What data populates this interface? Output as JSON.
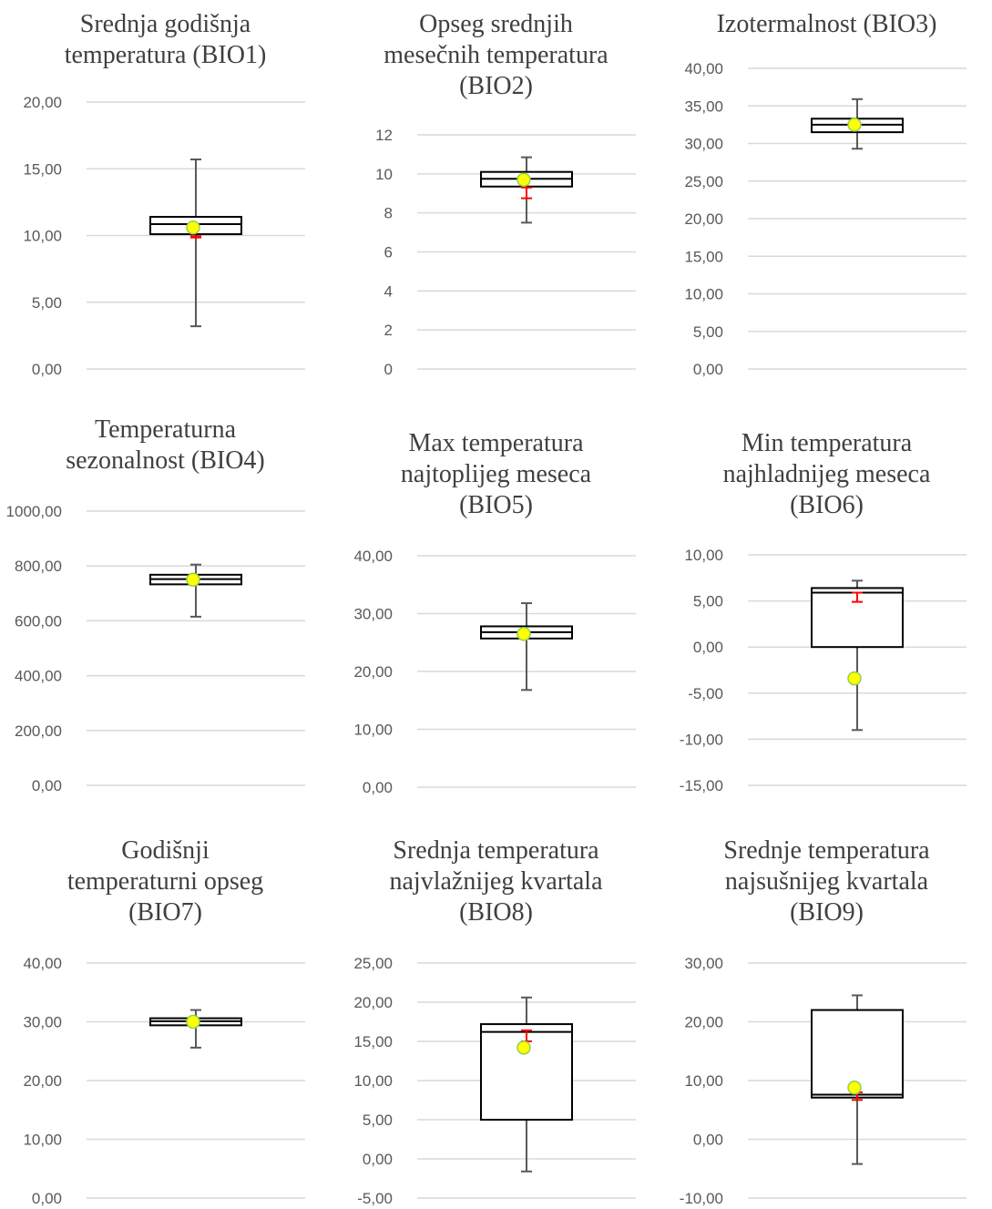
{
  "colors": {
    "grid": "#d9d9d9",
    "box_stroke": "#000000",
    "whisker": "#595959",
    "mean_fill": "#ffff00",
    "mean_stroke": "#92d050",
    "error_bar": "#ff0000",
    "title": "#404040",
    "tick": "#595959"
  },
  "chart_data": [
    {
      "type": "box",
      "title_lines": [
        "Srednja godišnja",
        "temperatura (BIO1)"
      ],
      "ylim": [
        0,
        20
      ],
      "yticks": [
        "0,00",
        "5,00",
        "10,00",
        "15,00",
        "20,00"
      ],
      "ystep": 5,
      "min": 3.2,
      "q1": 10.1,
      "median": 10.85,
      "q3": 11.4,
      "max": 15.7,
      "mean": 10.6,
      "error_bar": [
        9.85,
        9.95
      ],
      "grid": true,
      "legend": "none"
    },
    {
      "type": "box",
      "title_lines": [
        "Opseg srednjih",
        "mesečnih temperatura",
        "(BIO2)"
      ],
      "ylim": [
        0,
        12
      ],
      "yticks": [
        "0",
        "2",
        "4",
        "6",
        "8",
        "10",
        "12"
      ],
      "ystep": 2,
      "min": 7.5,
      "q1": 9.35,
      "median": 9.75,
      "q3": 10.1,
      "max": 10.85,
      "mean": 9.7,
      "error_bar": [
        8.75,
        9.3
      ],
      "grid": true,
      "legend": "none"
    },
    {
      "type": "box",
      "title_lines": [
        "Izotermalnost (BIO3)"
      ],
      "ylim": [
        0,
        40
      ],
      "yticks": [
        "0,00",
        "5,00",
        "10,00",
        "15,00",
        "20,00",
        "25,00",
        "30,00",
        "35,00",
        "40,00"
      ],
      "ystep": 5,
      "min": 29.3,
      "q1": 31.5,
      "median": 32.5,
      "q3": 33.3,
      "max": 35.9,
      "mean": 32.5,
      "error_bar": null,
      "grid": true,
      "legend": "none"
    },
    {
      "type": "box",
      "title_lines": [
        "Temperaturna",
        "sezonalnost (BIO4)"
      ],
      "ylim": [
        0,
        1000
      ],
      "yticks": [
        "0,00",
        "200,00",
        "400,00",
        "600,00",
        "800,00",
        "1000,00"
      ],
      "ystep": 200,
      "min": 615,
      "q1": 733,
      "median": 752,
      "q3": 768,
      "max": 805,
      "mean": 750,
      "error_bar": null,
      "grid": true,
      "legend": "none"
    },
    {
      "type": "box",
      "title_lines": [
        "Max temperatura",
        "najtoplijeg meseca",
        "(BIO5)"
      ],
      "ylim": [
        0,
        40
      ],
      "yticks": [
        "0,00",
        "10,00",
        "20,00",
        "30,00",
        "40,00"
      ],
      "ystep": 10,
      "min": 16.8,
      "q1": 25.7,
      "median": 26.8,
      "q3": 27.8,
      "max": 31.8,
      "mean": 26.5,
      "error_bar": null,
      "grid": true,
      "legend": "none"
    },
    {
      "type": "box",
      "title_lines": [
        "Min temperatura",
        "najhladnijeg meseca",
        "(BIO6)"
      ],
      "ylim": [
        -15,
        10
      ],
      "yticks": [
        "-15,00",
        "-10,00",
        "-5,00",
        "0,00",
        "5,00",
        "10,00"
      ],
      "ystep": 5,
      "min": -9.0,
      "q1": 0.0,
      "median": 5.9,
      "q3": 6.4,
      "max": 7.2,
      "mean": -3.4,
      "error_bar": [
        4.9,
        5.9
      ],
      "grid": true,
      "legend": "none"
    },
    {
      "type": "box",
      "title_lines": [
        "Godišnji",
        "temperaturni opseg",
        "(BIO7)"
      ],
      "ylim": [
        0,
        40
      ],
      "yticks": [
        "0,00",
        "10,00",
        "20,00",
        "30,00",
        "40,00"
      ],
      "ystep": 10,
      "min": 25.6,
      "q1": 29.4,
      "median": 30.1,
      "q3": 30.6,
      "max": 32.0,
      "mean": 30.0,
      "error_bar": null,
      "grid": true,
      "legend": "none"
    },
    {
      "type": "box",
      "title_lines": [
        "Srednja temperatura",
        "najvlažnijeg kvartala",
        "(BIO8)"
      ],
      "ylim": [
        -5,
        25
      ],
      "yticks": [
        "-5,00",
        "0,00",
        "5,00",
        "10,00",
        "15,00",
        "20,00",
        "25,00"
      ],
      "ystep": 5,
      "min": -1.6,
      "q1": 5.0,
      "median": 16.2,
      "q3": 17.2,
      "max": 20.6,
      "mean": 14.2,
      "error_bar": [
        15.0,
        16.4
      ],
      "grid": true,
      "legend": "none"
    },
    {
      "type": "box",
      "title_lines": [
        "Srednje temperatura",
        "najsušnijeg kvartala",
        "(BIO9)"
      ],
      "ylim": [
        -10,
        30
      ],
      "yticks": [
        "-10,00",
        "0,00",
        "10,00",
        "20,00",
        "30,00"
      ],
      "ystep": 10,
      "min": -4.2,
      "q1": 7.1,
      "median": 7.6,
      "q3": 22.0,
      "max": 24.5,
      "mean": 8.8,
      "error_bar": [
        6.7,
        8.0
      ],
      "grid": true,
      "legend": "none"
    }
  ]
}
